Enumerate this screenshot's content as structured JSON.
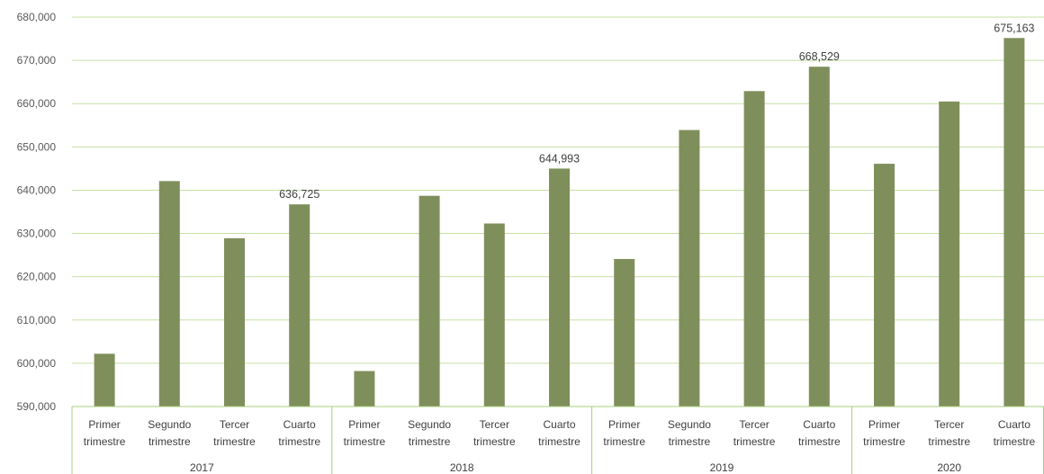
{
  "chart_data": {
    "type": "bar",
    "title": "",
    "xlabel": "",
    "ylabel": "",
    "ylim": [
      590000,
      680000
    ],
    "y_ticks": [
      "590,000",
      "600,000",
      "610,000",
      "620,000",
      "630,000",
      "640,000",
      "650,000",
      "660,000",
      "670,000",
      "680,000"
    ],
    "grid": true,
    "color": "#7f8f5b",
    "gridline_color": "#c6dfa3",
    "groups": [
      {
        "name": "2017",
        "items": [
          {
            "label": [
              "Primer",
              "trimestre"
            ],
            "value": 602200,
            "data_label": ""
          },
          {
            "label": [
              "Segundo",
              "trimestre"
            ],
            "value": 642100,
            "data_label": ""
          },
          {
            "label": [
              "Tercer",
              "trimestre"
            ],
            "value": 628900,
            "data_label": ""
          },
          {
            "label": [
              "Cuarto",
              "trimestre"
            ],
            "value": 636725,
            "data_label": "636,725"
          }
        ]
      },
      {
        "name": "2018",
        "items": [
          {
            "label": [
              "Primer",
              "trimestre"
            ],
            "value": 598200,
            "data_label": ""
          },
          {
            "label": [
              "Segundo",
              "trimestre"
            ],
            "value": 638700,
            "data_label": ""
          },
          {
            "label": [
              "Tercer",
              "trimestre"
            ],
            "value": 632300,
            "data_label": ""
          },
          {
            "label": [
              "Cuarto",
              "trimestre"
            ],
            "value": 644993,
            "data_label": "644,993"
          }
        ]
      },
      {
        "name": "2019",
        "items": [
          {
            "label": [
              "Primer",
              "trimestre"
            ],
            "value": 624100,
            "data_label": ""
          },
          {
            "label": [
              "Segundo",
              "trimestre"
            ],
            "value": 653900,
            "data_label": ""
          },
          {
            "label": [
              "Tercer",
              "trimestre"
            ],
            "value": 662900,
            "data_label": ""
          },
          {
            "label": [
              "Cuarto",
              "trimestre"
            ],
            "value": 668529,
            "data_label": "668,529"
          }
        ]
      },
      {
        "name": "2020",
        "items": [
          {
            "label": [
              "Primer",
              "trimestre"
            ],
            "value": 646100,
            "data_label": ""
          },
          {
            "label": [
              "Tercer",
              "trimestre"
            ],
            "value": 660500,
            "data_label": ""
          },
          {
            "label": [
              "Cuarto",
              "trimestre"
            ],
            "value": 675163,
            "data_label": "675,163"
          }
        ]
      }
    ]
  }
}
